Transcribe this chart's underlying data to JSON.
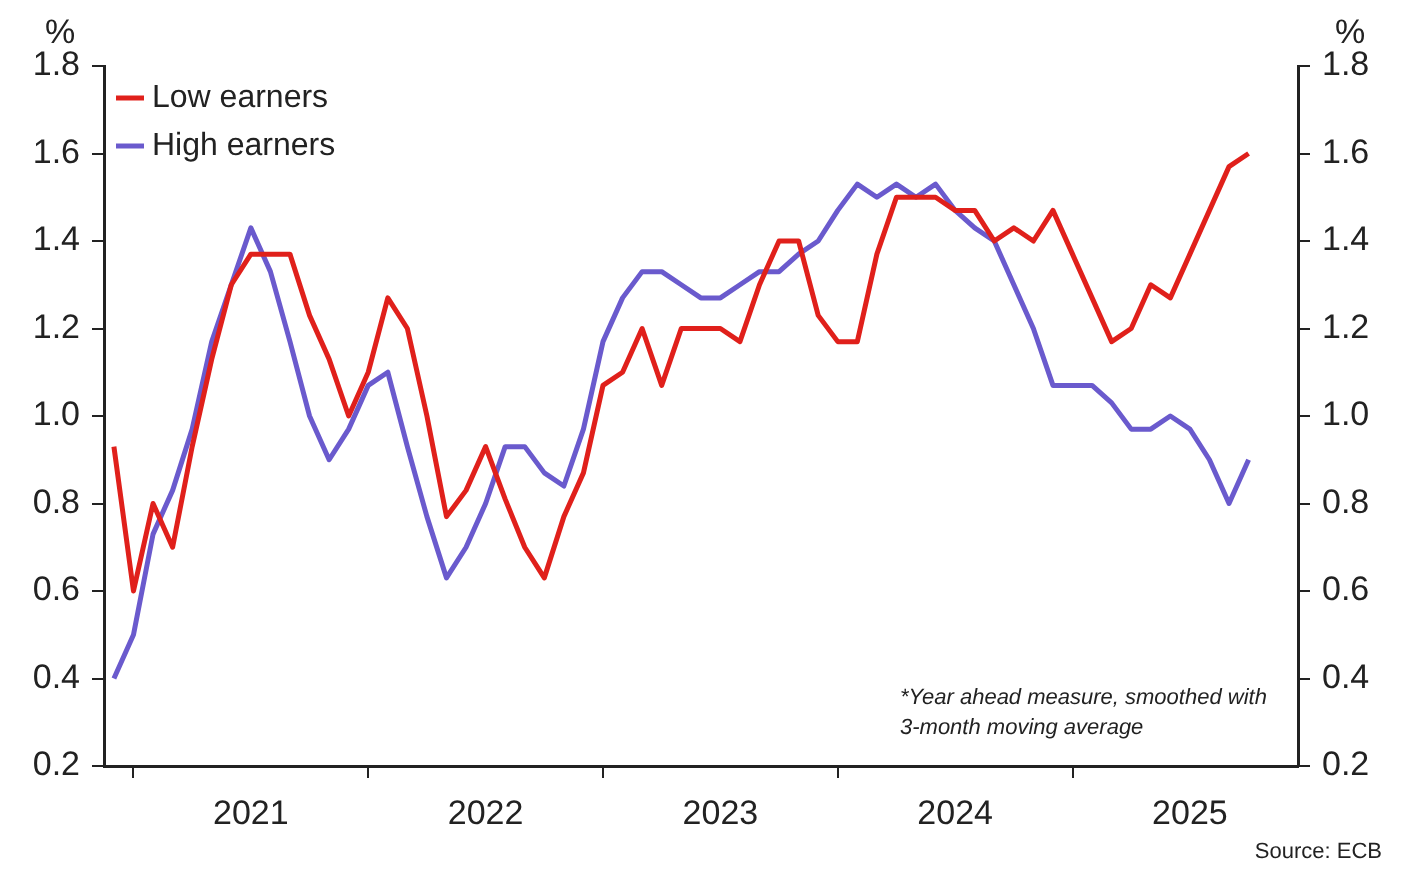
{
  "chart_data": {
    "type": "line",
    "ylabel": "%",
    "y2label": "%",
    "legend": "top left",
    "grid": false,
    "marker": "none",
    "line_style": "solid",
    "x": [
      "2020-12",
      "2021-01",
      "2021-02",
      "2021-03",
      "2021-04",
      "2021-05",
      "2021-06",
      "2021-07",
      "2021-08",
      "2021-09",
      "2021-10",
      "2021-11",
      "2021-12",
      "2022-01",
      "2022-02",
      "2022-03",
      "2022-04",
      "2022-05",
      "2022-06",
      "2022-07",
      "2022-08",
      "2022-09",
      "2022-10",
      "2022-11",
      "2022-12",
      "2023-01",
      "2023-02",
      "2023-03",
      "2023-04",
      "2023-05",
      "2023-06",
      "2023-07",
      "2023-08",
      "2023-09",
      "2023-10",
      "2023-11",
      "2023-12",
      "2024-01",
      "2024-02",
      "2024-03",
      "2024-04",
      "2024-05",
      "2024-06",
      "2024-07",
      "2024-08",
      "2024-09",
      "2024-10",
      "2024-11",
      "2024-12",
      "2025-01",
      "2025-02",
      "2025-03",
      "2025-04",
      "2025-05",
      "2025-06",
      "2025-07",
      "2025-08",
      "2025-09",
      "2025-10"
    ],
    "series": [
      {
        "name": "Low earners",
        "color": "#e0201b",
        "values": [
          0.93,
          0.6,
          0.8,
          0.7,
          0.93,
          1.13,
          1.3,
          1.37,
          1.37,
          1.37,
          1.23,
          1.13,
          1.0,
          1.1,
          1.27,
          1.2,
          1.0,
          0.77,
          0.83,
          0.93,
          0.81,
          0.7,
          0.63,
          0.77,
          0.87,
          1.07,
          1.1,
          1.2,
          1.07,
          1.2,
          1.2,
          1.2,
          1.17,
          1.3,
          1.4,
          1.4,
          1.23,
          1.17,
          1.17,
          1.37,
          1.5,
          1.5,
          1.5,
          1.47,
          1.47,
          1.4,
          1.43,
          1.4,
          1.47,
          1.37,
          1.27,
          1.17,
          1.2,
          1.3,
          1.27,
          1.37,
          1.47,
          1.57,
          1.6
        ]
      },
      {
        "name": "High earners",
        "color": "#6a5acd",
        "values": [
          0.4,
          0.5,
          0.73,
          0.83,
          0.97,
          1.17,
          1.3,
          1.43,
          1.33,
          1.17,
          1.0,
          0.9,
          0.97,
          1.07,
          1.1,
          0.93,
          0.77,
          0.63,
          0.7,
          0.8,
          0.93,
          0.93,
          0.87,
          0.84,
          0.97,
          1.17,
          1.27,
          1.33,
          1.33,
          1.3,
          1.27,
          1.27,
          1.3,
          1.33,
          1.33,
          1.37,
          1.4,
          1.47,
          1.53,
          1.5,
          1.53,
          1.5,
          1.53,
          1.47,
          1.43,
          1.4,
          1.3,
          1.2,
          1.07,
          1.07,
          1.07,
          1.03,
          0.97,
          0.97,
          1.0,
          0.97,
          0.9,
          0.8,
          0.9
        ]
      }
    ],
    "xlim": [
      "2020-11-16",
      "2025-12-17"
    ],
    "xticks": [
      {
        "value": "2021-01-01",
        "label": null
      },
      {
        "value": "2021-07-01",
        "label": "2021"
      },
      {
        "value": "2022-01-01",
        "label": null
      },
      {
        "value": "2022-07-01",
        "label": "2022"
      },
      {
        "value": "2023-01-01",
        "label": null
      },
      {
        "value": "2023-07-01",
        "label": "2023"
      },
      {
        "value": "2024-01-01",
        "label": null
      },
      {
        "value": "2024-07-01",
        "label": "2024"
      },
      {
        "value": "2025-01-01",
        "label": null
      },
      {
        "value": "2025-07-01",
        "label": "2025"
      }
    ],
    "ylim": [
      0.2,
      1.8
    ],
    "yticks": [
      {
        "value": 0.2,
        "label": "0.2"
      },
      {
        "value": 0.4,
        "label": "0.4"
      },
      {
        "value": 0.6,
        "label": "0.6"
      },
      {
        "value": 0.8,
        "label": "0.8"
      },
      {
        "value": 1.0,
        "label": "1.0"
      },
      {
        "value": 1.2,
        "label": "1.2"
      },
      {
        "value": 1.4,
        "label": "1.4"
      },
      {
        "value": 1.6,
        "label": "1.6"
      },
      {
        "value": 1.8,
        "label": "1.8"
      }
    ],
    "y2lim": [
      0.2,
      1.8
    ],
    "y2ticks": [
      {
        "value": 0.2,
        "label": "0.2"
      },
      {
        "value": 0.4,
        "label": "0.4"
      },
      {
        "value": 0.6,
        "label": "0.6"
      },
      {
        "value": 0.8,
        "label": "0.8"
      },
      {
        "value": 1.0,
        "label": "1.0"
      },
      {
        "value": 1.2,
        "label": "1.2"
      },
      {
        "value": 1.4,
        "label": "1.4"
      },
      {
        "value": 1.6,
        "label": "1.6"
      },
      {
        "value": 1.8,
        "label": "1.8"
      }
    ],
    "annotations": [
      "*Year ahead measure, smoothed with 3-month moving average",
      "Source: ECB"
    ]
  }
}
